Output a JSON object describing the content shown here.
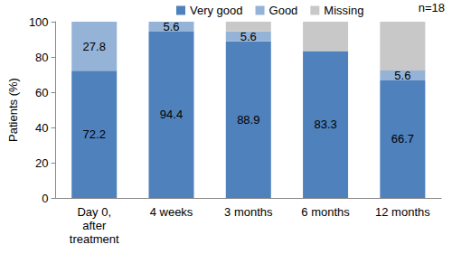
{
  "chart_data": {
    "type": "bar",
    "stacked": true,
    "grid": false,
    "legend": "top",
    "annotation": "n=18",
    "ylabel": "Patients (%)",
    "categories": [
      "Day 0,\nafter\ntreatment",
      "4 weeks",
      "3 months",
      "6 months",
      "12 months"
    ],
    "series": [
      {
        "name": "Very good",
        "color": "#4f81bd",
        "data_labels": true,
        "values": [
          72.2,
          94.4,
          88.9,
          83.3,
          66.7
        ]
      },
      {
        "name": "Good",
        "color": "#95b3d7",
        "data_labels": true,
        "values": [
          27.8,
          5.6,
          5.6,
          null,
          5.6
        ]
      },
      {
        "name": "Missing",
        "color": "#c8c8c8",
        "data_labels": false,
        "values": [
          null,
          null,
          5.5,
          16.7,
          27.7
        ]
      }
    ],
    "ylim": [
      0,
      100
    ],
    "yticks": [
      0,
      20,
      40,
      60,
      80,
      100
    ]
  }
}
